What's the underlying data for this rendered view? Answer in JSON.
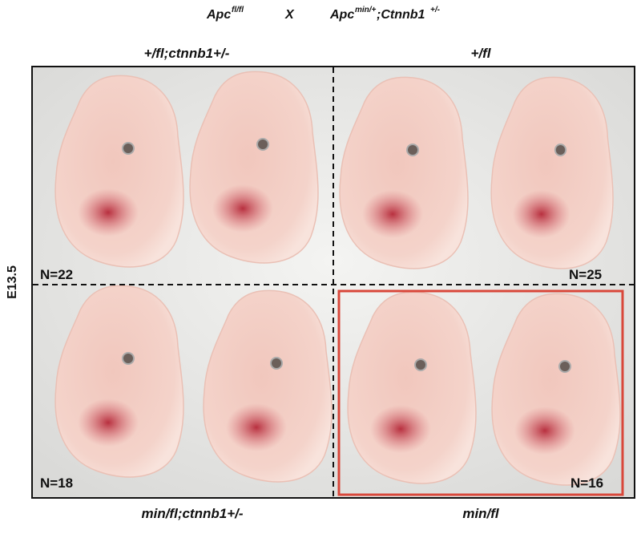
{
  "header": {
    "cross": {
      "female": {
        "gene": "Apc",
        "allele": "fl/fl"
      },
      "symbol": "X",
      "male": [
        {
          "gene": "Apc",
          "allele": "min/+"
        },
        {
          "gene": ";Ctnnb1",
          "allele": "+/-"
        }
      ]
    }
  },
  "side_label": "E13.5",
  "panels": [
    {
      "genotype": "+/fl;ctnnb1+/-",
      "count": "N=22"
    },
    {
      "genotype": "+/fl",
      "count": "N=25"
    },
    {
      "genotype": "min/fl;ctnnb1+/-",
      "count": "N=18"
    },
    {
      "genotype": "min/fl",
      "count": "N=16"
    }
  ]
}
